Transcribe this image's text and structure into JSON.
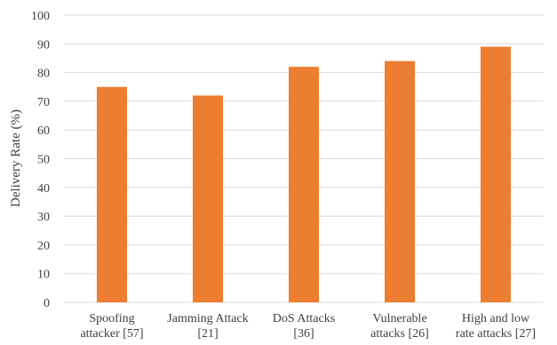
{
  "chart_data": {
    "type": "bar",
    "title": "",
    "xlabel": "",
    "ylabel": "Delivery Rate (%)",
    "ylim": [
      0,
      100
    ],
    "yticks": [
      0,
      10,
      20,
      30,
      40,
      50,
      60,
      70,
      80,
      90,
      100
    ],
    "grid": true,
    "legend": "none",
    "bar_color": "#ed7d31",
    "categories": [
      [
        "Spoofing",
        "attacker [57]"
      ],
      [
        "Jamming Attack",
        "[21]"
      ],
      [
        "DoS Attacks",
        "[36]"
      ],
      [
        "Vulnerable",
        "attacks [26]"
      ],
      [
        "High and low",
        "rate attacks [27]"
      ]
    ],
    "values": [
      75,
      72,
      82,
      84,
      89
    ]
  }
}
